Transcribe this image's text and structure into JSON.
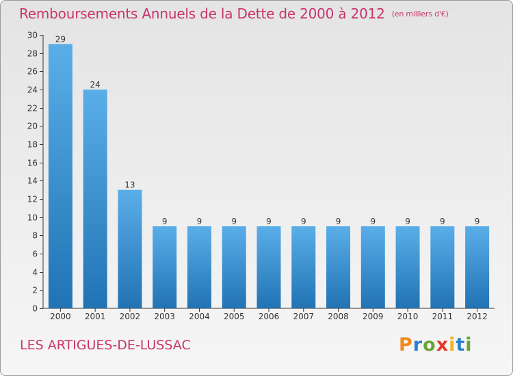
{
  "header": {
    "title": "Remboursements Annuels de la Dette de 2000 à 2012",
    "unit": "(en milliers d'€)"
  },
  "footer": {
    "commune": "LES ARTIGUES-DE-LUSSAC",
    "logo_letters": [
      "P",
      "r",
      "o",
      "x",
      "i",
      "t",
      "i"
    ],
    "logo_colors": [
      "#f08a1c",
      "#2a7fc9",
      "#6aa533",
      "#e23a2a",
      "#f2b01e",
      "#2a7fc9",
      "#6aa533"
    ]
  },
  "chart_data": {
    "type": "bar",
    "title": "Remboursements Annuels de la Dette de 2000 à 2012",
    "xlabel": "",
    "ylabel": "",
    "categories": [
      "2000",
      "2001",
      "2002",
      "2003",
      "2004",
      "2005",
      "2006",
      "2007",
      "2008",
      "2009",
      "2010",
      "2011",
      "2012"
    ],
    "values": [
      29,
      24,
      13,
      9,
      9,
      9,
      9,
      9,
      9,
      9,
      9,
      9,
      9
    ],
    "ylim": [
      0,
      30
    ],
    "yticks": [
      0,
      2,
      4,
      6,
      8,
      10,
      12,
      14,
      16,
      18,
      20,
      22,
      24,
      26,
      28,
      30
    ],
    "grid": false,
    "bar_color_top": "#5aaee8",
    "bar_color_bottom": "#2173b4"
  }
}
